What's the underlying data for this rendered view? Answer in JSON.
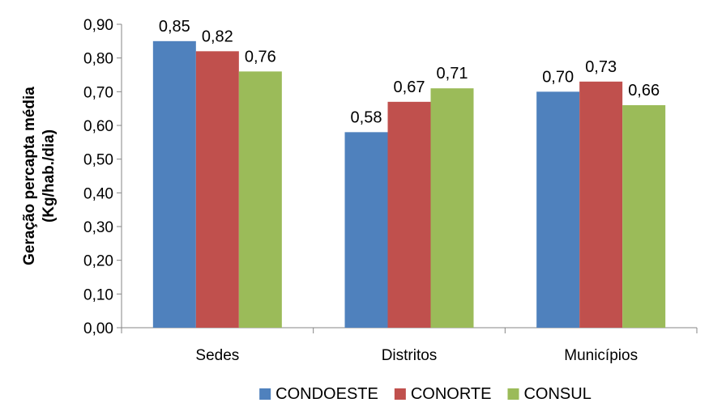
{
  "chart_data": {
    "type": "bar",
    "title": "",
    "xlabel": "",
    "ylabel": [
      "Geração percapta média",
      "(Kg/hab./dia)"
    ],
    "categories": [
      "Sedes",
      "Distritos",
      "Municípios"
    ],
    "series": [
      {
        "name": "CONDOESTE",
        "color": "#4F81BD",
        "values": [
          0.85,
          0.58,
          0.7
        ],
        "labels": [
          "0,85",
          "0,58",
          "0,70"
        ]
      },
      {
        "name": "CONORTE",
        "color": "#C0504D",
        "values": [
          0.82,
          0.67,
          0.73
        ],
        "labels": [
          "0,82",
          "0,67",
          "0,73"
        ]
      },
      {
        "name": "CONSUL",
        "color": "#9BBB59",
        "values": [
          0.76,
          0.71,
          0.66
        ],
        "labels": [
          "0,76",
          "0,71",
          "0,66"
        ]
      }
    ],
    "ylim": [
      0,
      0.9
    ],
    "yticks": [
      0,
      0.1,
      0.2,
      0.3,
      0.4,
      0.5,
      0.6,
      0.7,
      0.8,
      0.9
    ],
    "ytick_labels": [
      "0,00",
      "0,10",
      "0,20",
      "0,30",
      "0,40",
      "0,50",
      "0,60",
      "0,70",
      "0,80",
      "0,90"
    ],
    "grid": false,
    "legend_position": "bottom"
  }
}
